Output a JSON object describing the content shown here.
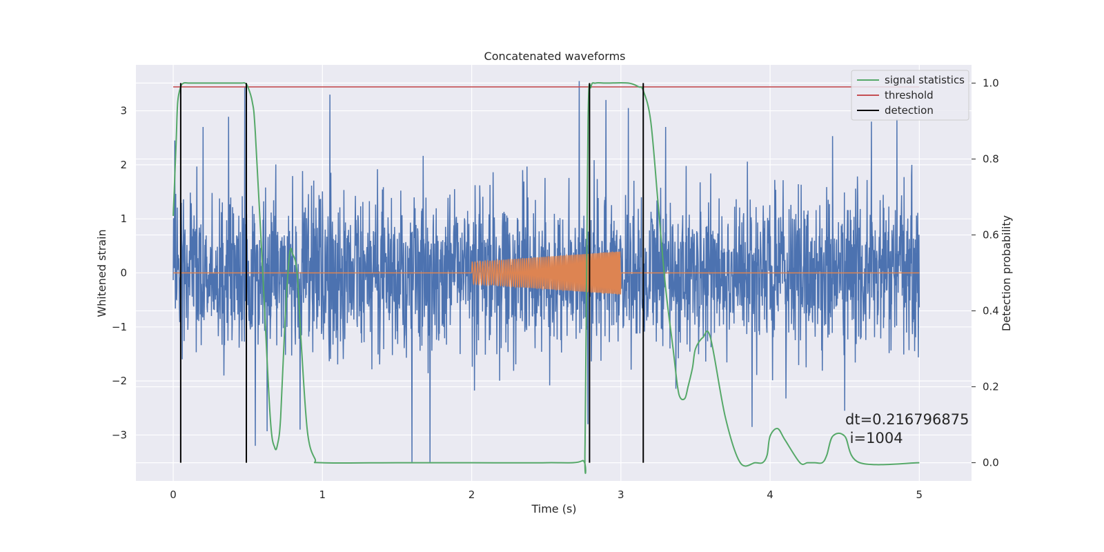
{
  "chart_data": {
    "type": "line",
    "title": "Concatenated waveforms",
    "xlabel": "Time (s)",
    "ylabel": "Whitened strain",
    "ylabel_right": "Detection probability",
    "xlim": [
      -0.25,
      5.35
    ],
    "ylim": [
      -3.85,
      3.85
    ],
    "ylim_right": [
      -0.048,
      1.048
    ],
    "x_ticks": [
      0,
      1,
      2,
      3,
      4,
      5
    ],
    "y_ticks": [
      -3,
      -2,
      -1,
      0,
      1,
      2,
      3
    ],
    "y_ticks_right": [
      0.0,
      0.2,
      0.4,
      0.6,
      0.8,
      1.0
    ],
    "x_tick_labels": [
      "0",
      "1",
      "2",
      "3",
      "4",
      "5"
    ],
    "y_tick_labels": [
      "−3",
      "−2",
      "−1",
      "0",
      "1",
      "2",
      "3"
    ],
    "y_tick_labels_right": [
      "0.0",
      "0.2",
      "0.4",
      "0.6",
      "0.8",
      "1.0"
    ],
    "grid": true,
    "legend_position": "top-right",
    "legend": [
      {
        "label": "signal statistics",
        "color": "#55a868"
      },
      {
        "label": "threshold",
        "color": "#c44e52"
      },
      {
        "label": "detection",
        "color": "#000000"
      }
    ],
    "series": [
      {
        "role": "noise",
        "color": "#4c72b0",
        "axis": "left",
        "x_range": [
          0,
          5
        ],
        "typical_envelope": [
          -0.7,
          0.7
        ],
        "extreme_range": [
          -3.5,
          3.55
        ],
        "peaks": [
          {
            "x": 0.01,
            "y": 2.45
          },
          {
            "x": 0.06,
            "y": -1.6
          },
          {
            "x": 0.2,
            "y": 2.7
          },
          {
            "x": 0.34,
            "y": -1.9
          },
          {
            "x": 0.48,
            "y": 3.45
          },
          {
            "x": 0.55,
            "y": -3.2
          },
          {
            "x": 0.85,
            "y": -2.9
          },
          {
            "x": 1.05,
            "y": 3.3
          },
          {
            "x": 1.6,
            "y": -3.5
          },
          {
            "x": 1.72,
            "y": -3.5
          },
          {
            "x": 2.72,
            "y": 3.55
          },
          {
            "x": 2.78,
            "y": -2.8
          },
          {
            "x": 2.9,
            "y": 3.2
          },
          {
            "x": 3.05,
            "y": 3.05
          },
          {
            "x": 3.3,
            "y": 2.7
          },
          {
            "x": 3.88,
            "y": -2.85
          },
          {
            "x": 4.5,
            "y": -2.55
          },
          {
            "x": 4.68,
            "y": 2.8
          },
          {
            "x": 4.85,
            "y": 2.85
          },
          {
            "x": 4.95,
            "y": 2.0
          }
        ]
      },
      {
        "role": "injected signal",
        "color": "#dd8452",
        "axis": "left",
        "x_range": [
          0,
          5
        ],
        "chirp_start": 2.0,
        "chirp_end": 3.0,
        "amplitude_start": 0.2,
        "amplitude_end": 0.4
      },
      {
        "name": "signal statistics",
        "color": "#55a868",
        "axis": "right",
        "x": [
          0,
          0.02,
          0.03,
          0.05,
          0.07,
          0.1,
          0.15,
          0.3,
          0.45,
          0.48,
          0.5,
          0.53,
          0.55,
          0.6,
          0.65,
          0.68,
          0.7,
          0.72,
          0.75,
          0.78,
          0.8,
          0.83,
          0.86,
          0.9,
          0.95,
          1.0,
          1.5,
          2.0,
          2.5,
          2.74,
          2.76,
          2.78,
          2.8,
          2.83,
          2.9,
          3.05,
          3.12,
          3.15,
          3.2,
          3.25,
          3.3,
          3.35,
          3.38,
          3.4,
          3.43,
          3.45,
          3.48,
          3.5,
          3.55,
          3.6,
          3.7,
          3.8,
          3.9,
          3.95,
          3.98,
          4.0,
          4.05,
          4.1,
          4.2,
          4.25,
          4.3,
          4.35,
          4.38,
          4.42,
          4.5,
          4.6,
          5.0
        ],
        "values": [
          0.65,
          0.85,
          0.95,
          0.99,
          1.0,
          1.0,
          1.0,
          1.0,
          1.0,
          1.0,
          0.99,
          0.95,
          0.87,
          0.5,
          0.12,
          0.04,
          0.05,
          0.12,
          0.38,
          0.55,
          0.55,
          0.5,
          0.3,
          0.08,
          0.01,
          0.0,
          0.0,
          0.0,
          0.0,
          0.005,
          0.05,
          0.9,
          0.99,
          1.0,
          1.0,
          1.0,
          0.99,
          0.98,
          0.9,
          0.68,
          0.46,
          0.3,
          0.2,
          0.17,
          0.17,
          0.2,
          0.25,
          0.3,
          0.33,
          0.33,
          0.12,
          0.0,
          0.0,
          0.0,
          0.02,
          0.07,
          0.09,
          0.06,
          0.0,
          0.0,
          0.0,
          0.0,
          0.02,
          0.07,
          0.07,
          0.0,
          0.0
        ]
      },
      {
        "name": "threshold",
        "color": "#c44e52",
        "axis": "right",
        "x": [
          0,
          5
        ],
        "values": [
          0.99,
          0.99
        ]
      },
      {
        "name": "detection",
        "color": "#000000",
        "axis": "right",
        "type": "vertical-lines",
        "x": [
          0.05,
          0.49,
          2.79,
          3.15
        ],
        "span": [
          0.0,
          1.0
        ]
      }
    ],
    "annotation": {
      "line1": "dt=0.216796875",
      "line2": " i=1004",
      "x": 4.5,
      "y": -2.9
    }
  }
}
